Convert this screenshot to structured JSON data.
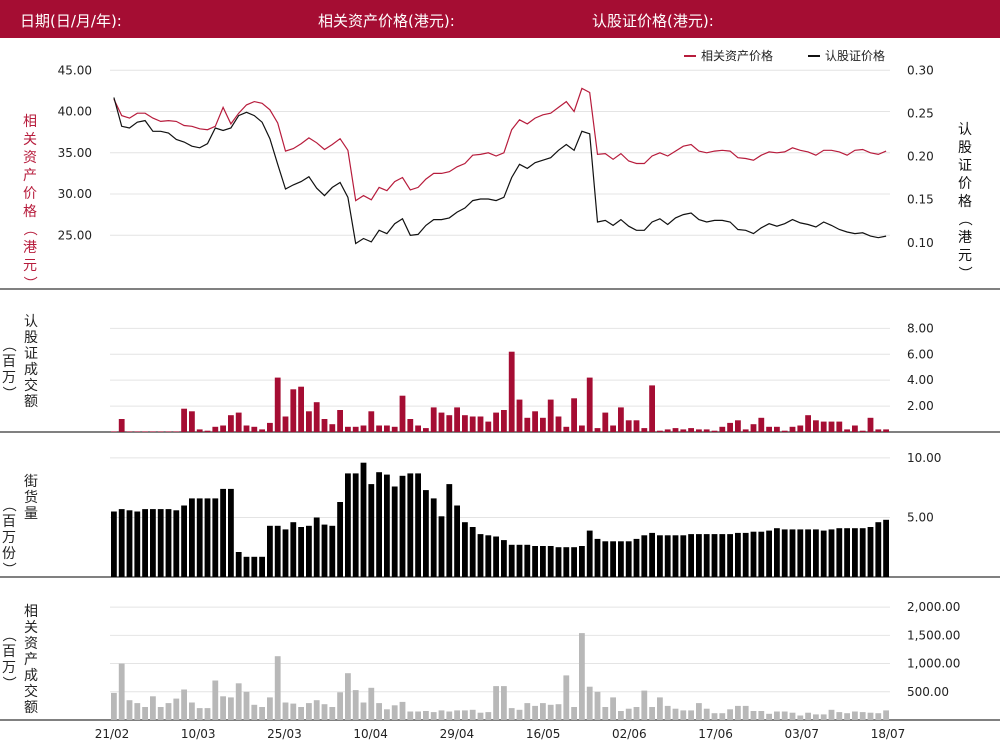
{
  "header": {
    "date_label": "日期(日/月/年):",
    "underlying_label": "相关资产价格(港元):",
    "warrant_label": "认股证价格(港元):"
  },
  "colors": {
    "header_bg": "#a50d33",
    "underlying": "#b71c3c",
    "warrant": "#111111",
    "grey_bar": "#b8b8b8"
  },
  "chart_data": {
    "type": "multi-panel",
    "x_tick_labels": [
      "21/02",
      "10/03",
      "25/03",
      "10/04",
      "29/04",
      "16/05",
      "02/06",
      "17/06",
      "03/07",
      "18/07"
    ],
    "legend": [
      "相关资产价格",
      "认股证价格"
    ],
    "panels": [
      {
        "type": "line",
        "left_axis_label": "相关资产价格（港元）",
        "right_axis_label": "认股证价格（港元）",
        "left_ticks": [
          "45.00",
          "40.00",
          "35.00",
          "30.00",
          "25.00"
        ],
        "right_ticks": [
          "0.30",
          "0.25",
          "0.20",
          "0.15",
          "0.10"
        ],
        "left_range": [
          22,
          46
        ],
        "right_range": [
          0.08,
          0.31
        ],
        "series": [
          {
            "name": "相关资产价格",
            "axis": "left",
            "values": [
              41.5,
              39.5,
              39.2,
              39.8,
              39.8,
              39.2,
              38.8,
              38.9,
              38.8,
              38.3,
              38.2,
              37.9,
              37.8,
              38.2,
              40.5,
              38.5,
              39.8,
              40.8,
              41.2,
              41.0,
              40.2,
              38.6,
              35.2,
              35.5,
              36.1,
              36.8,
              36.2,
              35.4,
              36.0,
              36.7,
              35.3,
              29.2,
              29.8,
              29.3,
              30.8,
              30.4,
              31.5,
              32.0,
              30.5,
              30.8,
              31.8,
              32.5,
              32.5,
              32.7,
              33.3,
              33.7,
              34.7,
              34.8,
              35.0,
              34.6,
              35.0,
              37.8,
              39.0,
              38.5,
              39.2,
              39.6,
              39.8,
              40.5,
              41.2,
              40.0,
              42.8,
              42.3,
              34.8,
              34.9,
              34.2,
              34.9,
              34.0,
              33.7,
              33.7,
              34.6,
              35.0,
              34.6,
              35.2,
              35.8,
              36.0,
              35.2,
              35.0,
              35.2,
              35.3,
              35.2,
              34.4,
              34.3,
              34.1,
              34.7,
              35.1,
              35.0,
              35.1,
              35.6,
              35.3,
              35.1,
              34.7,
              35.3,
              35.3,
              35.1,
              34.7,
              35.3,
              35.4,
              35.0,
              34.8,
              35.2
            ]
          },
          {
            "name": "认股证价格",
            "axis": "left",
            "values": [
              41.7,
              38.2,
              38.0,
              38.7,
              38.9,
              37.6,
              37.6,
              37.4,
              36.6,
              36.3,
              35.8,
              35.6,
              36.1,
              38.0,
              37.7,
              38.0,
              39.5,
              39.9,
              39.5,
              38.7,
              36.7,
              33.6,
              30.6,
              31.1,
              31.5,
              32.1,
              30.7,
              29.8,
              30.8,
              31.4,
              29.6,
              24.0,
              24.6,
              24.2,
              25.6,
              25.2,
              26.4,
              27.0,
              25.0,
              25.1,
              26.2,
              26.9,
              26.9,
              27.1,
              27.8,
              28.3,
              29.2,
              29.4,
              29.4,
              29.2,
              29.6,
              32.0,
              33.6,
              33.1,
              33.8,
              34.1,
              34.4,
              35.3,
              36.0,
              35.3,
              37.6,
              37.3,
              26.6,
              26.8,
              26.2,
              26.9,
              26.1,
              25.6,
              25.6,
              26.6,
              27.0,
              26.3,
              27.1,
              27.5,
              27.7,
              26.9,
              26.6,
              26.8,
              26.8,
              26.6,
              25.7,
              25.6,
              25.2,
              25.9,
              26.4,
              26.1,
              26.4,
              26.9,
              26.5,
              26.3,
              26.0,
              26.6,
              26.2,
              25.7,
              25.4,
              25.2,
              25.3,
              24.9,
              24.7,
              24.9
            ]
          }
        ]
      },
      {
        "type": "bar",
        "left_axis_label": "认股证成交额（百万）",
        "right_ticks": [
          "8.00",
          "6.00",
          "4.00",
          "2.00"
        ],
        "range": [
          0,
          8.8
        ],
        "color": "#a50d33",
        "values": [
          0.05,
          1.0,
          0.05,
          0.05,
          0.05,
          0.05,
          0.05,
          0.05,
          0.05,
          1.8,
          1.6,
          0.2,
          0.1,
          0.4,
          0.5,
          1.3,
          1.5,
          0.5,
          0.4,
          0.2,
          0.7,
          4.2,
          1.2,
          3.3,
          3.5,
          1.6,
          2.3,
          1.0,
          0.6,
          1.7,
          0.4,
          0.4,
          0.5,
          1.6,
          0.5,
          0.5,
          0.4,
          2.8,
          1.0,
          0.5,
          0.3,
          1.9,
          1.5,
          1.3,
          1.9,
          1.3,
          1.2,
          1.2,
          0.8,
          1.5,
          1.7,
          6.2,
          2.5,
          1.1,
          1.6,
          1.1,
          2.5,
          1.2,
          0.4,
          2.6,
          0.5,
          4.2,
          0.3,
          1.5,
          0.5,
          1.9,
          0.9,
          0.9,
          0.3,
          3.6,
          0.1,
          0.2,
          0.3,
          0.2,
          0.3,
          0.2,
          0.2,
          0.1,
          0.4,
          0.7,
          0.9,
          0.2,
          0.6,
          1.1,
          0.4,
          0.4,
          0.1,
          0.4,
          0.5,
          1.3,
          0.9,
          0.8,
          0.8,
          0.8,
          0.2,
          0.5,
          0.1,
          1.1,
          0.2,
          0.2
        ]
      },
      {
        "type": "bar",
        "left_axis_label": "街货量（百万份）",
        "right_ticks": [
          "10.00",
          "5.00"
        ],
        "range": [
          0,
          11.0
        ],
        "color": "#000000",
        "values": [
          5.5,
          5.7,
          5.6,
          5.5,
          5.7,
          5.7,
          5.7,
          5.7,
          5.6,
          6.0,
          6.6,
          6.6,
          6.6,
          6.6,
          7.4,
          7.4,
          2.1,
          1.7,
          1.7,
          1.7,
          4.3,
          4.3,
          4.0,
          4.6,
          4.2,
          4.3,
          5.0,
          4.4,
          4.3,
          6.3,
          8.7,
          8.7,
          9.6,
          7.8,
          8.8,
          8.6,
          7.6,
          8.5,
          8.7,
          8.7,
          7.3,
          6.6,
          5.1,
          7.8,
          6.0,
          4.6,
          4.2,
          3.6,
          3.5,
          3.4,
          3.1,
          2.7,
          2.7,
          2.7,
          2.6,
          2.6,
          2.6,
          2.5,
          2.5,
          2.5,
          2.6,
          3.9,
          3.2,
          3.0,
          3.0,
          3.0,
          3.0,
          3.2,
          3.5,
          3.7,
          3.5,
          3.5,
          3.5,
          3.5,
          3.6,
          3.6,
          3.6,
          3.6,
          3.6,
          3.6,
          3.7,
          3.7,
          3.8,
          3.8,
          3.9,
          4.1,
          4.0,
          4.0,
          4.0,
          4.0,
          4.0,
          3.9,
          4.0,
          4.1,
          4.1,
          4.1,
          4.1,
          4.2,
          4.6,
          4.8
        ]
      },
      {
        "type": "bar",
        "left_axis_label": "相关资产成交额（百万）",
        "right_ticks": [
          "2,000.00",
          "1,500.00",
          "1,000.00",
          "500.00"
        ],
        "range": [
          0,
          2250
        ],
        "color": "#b8b8b8",
        "values": [
          480,
          1000,
          350,
          300,
          230,
          420,
          230,
          300,
          380,
          540,
          310,
          210,
          210,
          700,
          420,
          400,
          650,
          500,
          270,
          230,
          400,
          1130,
          310,
          290,
          230,
          300,
          350,
          280,
          230,
          490,
          830,
          530,
          310,
          570,
          300,
          190,
          260,
          320,
          150,
          150,
          160,
          140,
          170,
          150,
          170,
          170,
          180,
          130,
          140,
          600,
          600,
          210,
          180,
          300,
          250,
          300,
          270,
          280,
          790,
          230,
          1540,
          590,
          500,
          230,
          400,
          160,
          200,
          230,
          520,
          230,
          400,
          250,
          200,
          170,
          170,
          300,
          200,
          120,
          120,
          190,
          250,
          250,
          160,
          160,
          110,
          150,
          150,
          130,
          80,
          130,
          100,
          100,
          180,
          140,
          120,
          150,
          140,
          130,
          120,
          170
        ]
      }
    ]
  }
}
